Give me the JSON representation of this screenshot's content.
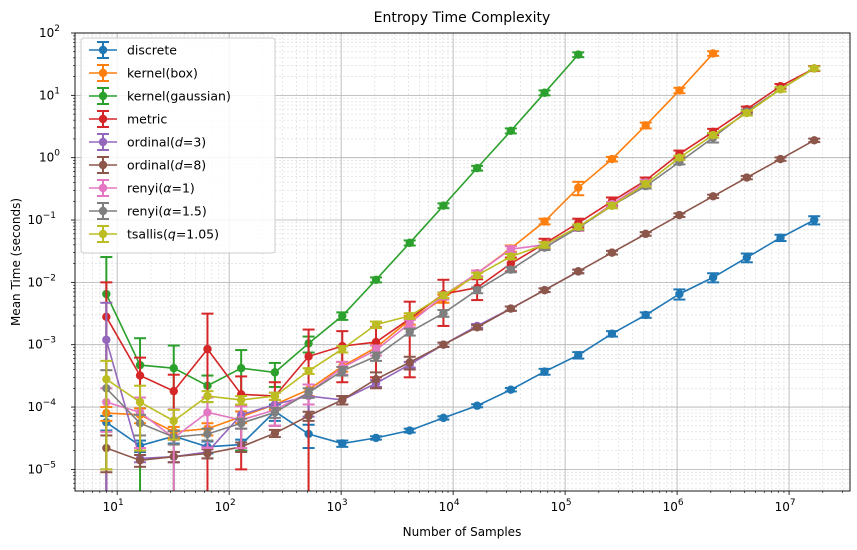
{
  "chart_data": {
    "type": "line",
    "title": "Entropy Time Complexity",
    "xlabel": "Number of Samples",
    "ylabel": "Mean Time (seconds)",
    "xscale": "log",
    "yscale": "log",
    "xlim": [
      4.2,
      35000000
    ],
    "ylim": [
      4.5e-06,
      100
    ],
    "x_ticks": [
      {
        "value": 10,
        "base": "10",
        "exp": "1"
      },
      {
        "value": 100,
        "base": "10",
        "exp": "2"
      },
      {
        "value": 1000,
        "base": "10",
        "exp": "3"
      },
      {
        "value": 10000,
        "base": "10",
        "exp": "4"
      },
      {
        "value": 100000,
        "base": "10",
        "exp": "5"
      },
      {
        "value": 1000000,
        "base": "10",
        "exp": "6"
      },
      {
        "value": 10000000,
        "base": "10",
        "exp": "7"
      }
    ],
    "y_ticks": [
      {
        "value": 1e-05,
        "base": "10",
        "exp": "−5"
      },
      {
        "value": 0.0001,
        "base": "10",
        "exp": "−4"
      },
      {
        "value": 0.001,
        "base": "10",
        "exp": "−3"
      },
      {
        "value": 0.01,
        "base": "10",
        "exp": "−2"
      },
      {
        "value": 0.1,
        "base": "10",
        "exp": "−1"
      },
      {
        "value": 1,
        "base": "10",
        "exp": "0"
      },
      {
        "value": 10,
        "base": "10",
        "exp": "1"
      },
      {
        "value": 100,
        "base": "10",
        "exp": "2"
      }
    ],
    "grid": "major and minor",
    "legend_position": "top-left",
    "series": [
      {
        "name": "discrete",
        "color": "#1f77b4",
        "x": [
          8,
          16,
          32,
          64,
          128,
          256,
          512,
          1024,
          2048,
          4096,
          8192,
          16384,
          32768,
          65536,
          131072,
          262144,
          524288,
          1048576,
          2097152,
          4194304,
          8388608,
          16777216
        ],
        "y": [
          5.7e-05,
          2.4e-05,
          3.4e-05,
          2.3e-05,
          2.5e-05,
          8.5e-05,
          3.7e-05,
          2.6e-05,
          3.2e-05,
          4.2e-05,
          6.7e-05,
          0.000105,
          0.00019,
          0.00037,
          0.00068,
          0.0015,
          0.003,
          0.0065,
          0.012,
          0.025,
          0.052,
          0.1
        ],
        "err": [
          1.5e-05,
          5e-06,
          8e-06,
          5e-06,
          5e-06,
          2.5e-05,
          1.5e-05,
          3e-06,
          2e-06,
          3e-06,
          4e-06,
          6e-06,
          1.2e-05,
          4e-05,
          8e-05,
          0.00015,
          0.0003,
          0.0012,
          0.002,
          0.004,
          0.006,
          0.015
        ]
      },
      {
        "name": "kernel(box)",
        "color": "#ff7f0e",
        "x": [
          8,
          16,
          32,
          64,
          128,
          256,
          512,
          1024,
          2048,
          4096,
          8192,
          16384,
          32768,
          65536,
          131072,
          262144,
          524288,
          1048576,
          2097152
        ],
        "y": [
          8e-05,
          7.5e-05,
          4e-05,
          4.5e-05,
          7e-05,
          0.00011,
          0.00019,
          0.00045,
          0.0009,
          0.0025,
          0.0055,
          0.014,
          0.035,
          0.095,
          0.33,
          0.95,
          3.3,
          12,
          47
        ],
        "err": [
          2e-05,
          2e-05,
          8e-06,
          1e-05,
          1.5e-05,
          2e-05,
          4e-05,
          8e-05,
          0.00015,
          0.0004,
          0.0008,
          0.0015,
          0.004,
          0.01,
          0.08,
          0.08,
          0.35,
          1.2,
          4
        ]
      },
      {
        "name": "kernel(gaussian)",
        "color": "#2ca02c",
        "x": [
          8,
          16,
          32,
          64,
          128,
          256,
          512,
          1024,
          2048,
          4096,
          8192,
          16384,
          32768,
          65536,
          131072
        ],
        "y": [
          0.0065,
          0.00047,
          0.00042,
          0.00022,
          0.00042,
          0.00036,
          0.00105,
          0.0029,
          0.011,
          0.043,
          0.17,
          0.68,
          2.7,
          11,
          45
        ],
        "err": [
          0.019,
          0.0008,
          0.00055,
          0.0001,
          0.0004,
          0.00015,
          0.0003,
          0.0004,
          0.001,
          0.004,
          0.015,
          0.06,
          0.25,
          1,
          4
        ]
      },
      {
        "name": "metric",
        "color": "#d62728",
        "x": [
          8,
          16,
          32,
          64,
          128,
          256,
          512,
          1024,
          2048,
          4096,
          8192,
          16384,
          32768,
          65536,
          131072,
          262144,
          524288,
          1048576,
          2097152,
          4194304,
          8388608,
          16777216
        ],
        "y": [
          0.0028,
          0.00032,
          0.00018,
          0.00085,
          0.00016,
          0.00015,
          0.00065,
          0.00095,
          0.0011,
          0.0026,
          0.0065,
          0.0082,
          0.02,
          0.042,
          0.09,
          0.2,
          0.43,
          1.15,
          2.6,
          6,
          14,
          27
        ],
        "err": [
          0.0072,
          0.0003,
          0.00015,
          0.0023,
          0.00015,
          0.0001,
          0.0011,
          0.0007,
          0.0008,
          0.0023,
          0.0045,
          0.003,
          0.005,
          0.008,
          0.015,
          0.03,
          0.05,
          0.15,
          0.3,
          0.6,
          1.2,
          2.5
        ]
      },
      {
        "name": "ordinal(d=3)",
        "name_base": "ordinal(",
        "name_var": "d",
        "name_rest": "=3)",
        "color": "#9467bd",
        "x": [
          8,
          16,
          32,
          64,
          128,
          256,
          512,
          1024,
          2048,
          4096,
          8192,
          16384,
          32768,
          65536,
          131072
        ],
        "y": [
          0.0012,
          1.5e-05,
          1.6e-05,
          1.9e-05,
          7.5e-05,
          0.00011,
          0.00015,
          0.00013,
          0.00024,
          0.00048,
          0.001,
          0.002,
          0.0038,
          0.0075,
          0.015
        ],
        "err": [
          0.0035,
          2e-06,
          3e-06,
          4e-06,
          3e-05,
          6e-05,
          8e-05,
          2e-05,
          3e-05,
          5e-05,
          8e-05,
          0.00015,
          0.0003,
          0.0005,
          0.001
        ]
      },
      {
        "name": "ordinal(d=8)",
        "name_base": "ordinal(",
        "name_var": "d",
        "name_rest": "=8)",
        "color": "#8c564b",
        "x": [
          8,
          16,
          32,
          64,
          128,
          256,
          512,
          1024,
          2048,
          4096,
          8192,
          16384,
          32768,
          65536,
          131072,
          262144,
          524288,
          1048576,
          2097152,
          4194304,
          8388608,
          16777216
        ],
        "y": [
          2.2e-05,
          1.4e-05,
          1.6e-05,
          1.8e-05,
          2.3e-05,
          3.8e-05,
          7.2e-05,
          0.00013,
          0.00028,
          0.00052,
          0.001,
          0.0019,
          0.0038,
          0.0075,
          0.015,
          0.03,
          0.06,
          0.12,
          0.24,
          0.48,
          0.95,
          1.9
        ],
        "err": [
          1.3e-05,
          3e-06,
          3e-06,
          3e-06,
          4e-06,
          5e-06,
          1.2e-05,
          2e-05,
          8e-05,
          0.00012,
          8e-05,
          0.00015,
          0.0003,
          0.0005,
          0.001,
          0.002,
          0.004,
          0.008,
          0.015,
          0.03,
          0.06,
          0.12
        ]
      },
      {
        "name": "renyi(α=1)",
        "name_base": "renyi(",
        "name_var": "α",
        "name_rest": "=1)",
        "color": "#e377c2",
        "x": [
          8,
          16,
          32,
          64,
          128,
          256,
          512,
          1024,
          2048,
          4096,
          8192,
          16384,
          32768,
          65536,
          131072,
          262144,
          524288
        ],
        "y": [
          0.00012,
          8.2e-05,
          3.2e-05,
          8.2e-05,
          6.2e-05,
          9e-05,
          0.00017,
          0.00043,
          0.00082,
          0.0022,
          0.0061,
          0.014,
          0.034,
          0.04,
          0.075,
          0.18,
          0.4
        ],
        "err": [
          8e-05,
          6e-05,
          6e-05,
          6e-05,
          4e-05,
          4e-05,
          6e-05,
          0.0001,
          0.00015,
          0.0003,
          0.0008,
          0.0015,
          0.004,
          0.004,
          0.008,
          0.015,
          0.035
        ]
      },
      {
        "name": "renyi(α=1.5)",
        "name_base": "renyi(",
        "name_var": "α",
        "name_rest": "=1.5)",
        "color": "#7f7f7f",
        "x": [
          8,
          16,
          32,
          64,
          128,
          256,
          512,
          1024,
          2048,
          4096,
          8192,
          16384,
          32768,
          65536,
          131072,
          262144,
          524288,
          1048576,
          2097152,
          4194304,
          8388608,
          16777216
        ],
        "y": [
          0.0002,
          5.5e-05,
          3.3e-05,
          3.7e-05,
          5.5e-05,
          8.2e-05,
          0.00017,
          0.00038,
          0.00065,
          0.0016,
          0.0032,
          0.0075,
          0.016,
          0.036,
          0.075,
          0.17,
          0.35,
          0.85,
          2.1,
          5.5,
          12.5,
          27
        ],
        "err": [
          0.00019,
          2e-05,
          8e-06,
          8e-06,
          1e-05,
          1.5e-05,
          3e-05,
          6e-05,
          0.0001,
          0.0002,
          0.0004,
          0.0008,
          0.0015,
          0.003,
          0.006,
          0.015,
          0.03,
          0.07,
          0.35,
          0.4,
          1,
          2
        ]
      },
      {
        "name": "tsallis(q=1.05)",
        "name_base": "tsallis(",
        "name_var": "q",
        "name_rest": "=1.05)",
        "color": "#bcbd22",
        "x": [
          8,
          16,
          32,
          64,
          128,
          256,
          512,
          1024,
          2048,
          4096,
          8192,
          16384,
          32768,
          65536,
          131072,
          262144,
          524288,
          1048576,
          2097152,
          4194304,
          8388608,
          16777216
        ],
        "y": [
          0.00028,
          0.00012,
          6e-05,
          0.00015,
          0.00013,
          0.00015,
          0.00038,
          0.00085,
          0.0021,
          0.0029,
          0.0062,
          0.013,
          0.026,
          0.04,
          0.078,
          0.17,
          0.38,
          1,
          2.3,
          5.2,
          12.5,
          27
        ],
        "err": [
          0.00027,
          0.0001,
          3e-05,
          3e-05,
          2e-05,
          2e-05,
          4e-05,
          0.0001,
          0.00025,
          0.0003,
          0.0006,
          0.0012,
          0.0025,
          0.004,
          0.007,
          0.015,
          0.035,
          0.08,
          0.2,
          0.45,
          1,
          2
        ]
      }
    ]
  }
}
